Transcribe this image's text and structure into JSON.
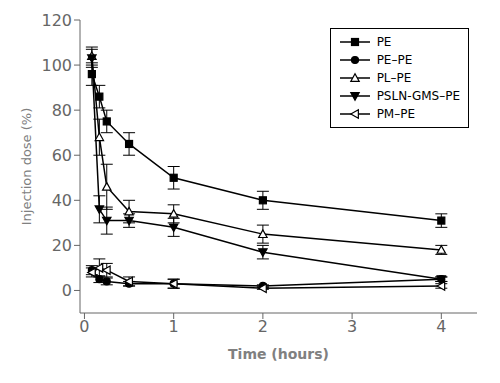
{
  "chart_data": {
    "type": "line",
    "xlabel": "Time (hours)",
    "ylabel": "Injection dose (%)",
    "xlim": [
      -0.05,
      4.4
    ],
    "ylim": [
      -10,
      120
    ],
    "xticks": [
      0,
      1,
      2,
      3,
      4
    ],
    "yticks": [
      0,
      20,
      40,
      60,
      80,
      100,
      120
    ],
    "grid": false,
    "legend": "upper right",
    "line_style": "solid",
    "x": [
      0.083,
      0.167,
      0.25,
      0.5,
      1.0,
      2.0,
      4.0
    ],
    "series": [
      {
        "name": "PE",
        "color": "black",
        "marker": "square",
        "values": [
          96,
          86,
          75,
          65,
          50,
          40,
          31
        ],
        "errors": [
          5,
          5,
          5,
          5,
          5,
          4,
          3
        ]
      },
      {
        "name": "PE–PE",
        "color": "black",
        "marker": "circle",
        "values": [
          9,
          5,
          4,
          3,
          3,
          2,
          5
        ],
        "errors": [
          2,
          1.5,
          1.5,
          1,
          2,
          0.5,
          1
        ]
      },
      {
        "name": "PL–PE",
        "color": "black",
        "marker": "triangle-up-open",
        "values": [
          104,
          68,
          46,
          35,
          34,
          25,
          18
        ],
        "errors": [
          4,
          8,
          10,
          5,
          4,
          4,
          2
        ]
      },
      {
        "name": "PSLN-GMS–PE",
        "color": "black",
        "marker": "triangle-down",
        "values": [
          103,
          36,
          31,
          31,
          28,
          17,
          5
        ],
        "errors": [
          4,
          6,
          6,
          3,
          4,
          3,
          1
        ]
      },
      {
        "name": "PM–PE",
        "color": "black",
        "marker": "triangle-left-open",
        "values": [
          8,
          10,
          9,
          4,
          3,
          1,
          2
        ],
        "errors": [
          2,
          4,
          3,
          2,
          2,
          0.5,
          1
        ]
      }
    ]
  }
}
